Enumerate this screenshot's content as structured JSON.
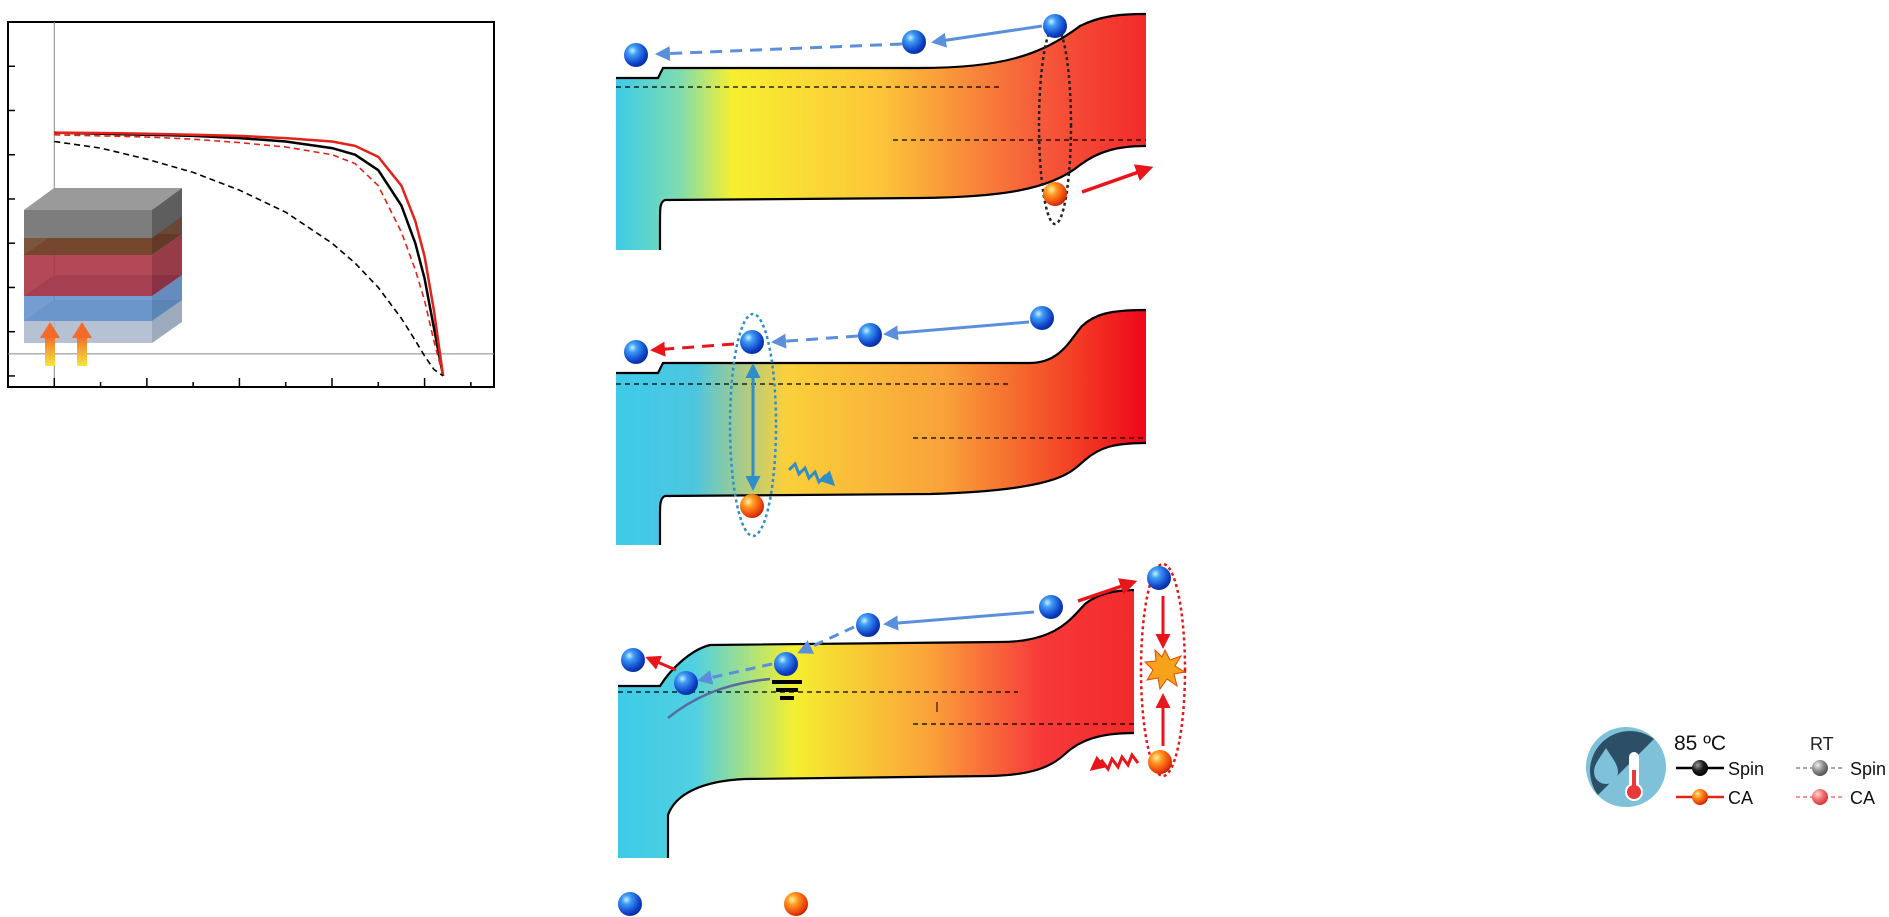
{
  "chart_data": {
    "type": "line",
    "title": "",
    "xlabel": "",
    "ylabel": "",
    "grid": false,
    "series": [
      {
        "style": "solid",
        "color": "#000000",
        "x": [
          0,
          0.1,
          0.2,
          0.3,
          0.4,
          0.5,
          0.6,
          0.65,
          0.7,
          0.75,
          0.78,
          0.8,
          0.82,
          0.84
        ],
        "y": [
          1.0,
          0.995,
          0.99,
          0.985,
          0.975,
          0.96,
          0.93,
          0.9,
          0.83,
          0.67,
          0.5,
          0.34,
          0.12,
          -0.1
        ]
      },
      {
        "style": "solid",
        "color": "#e2231a",
        "x": [
          0,
          0.1,
          0.2,
          0.3,
          0.4,
          0.5,
          0.6,
          0.65,
          0.7,
          0.75,
          0.78,
          0.8,
          0.82,
          0.84
        ],
        "y": [
          1.0,
          0.998,
          0.995,
          0.99,
          0.985,
          0.975,
          0.96,
          0.94,
          0.89,
          0.76,
          0.6,
          0.44,
          0.2,
          -0.1
        ]
      },
      {
        "style": "dashed",
        "color": "#e2231a",
        "x": [
          0,
          0.1,
          0.2,
          0.3,
          0.4,
          0.5,
          0.6,
          0.65,
          0.7,
          0.75,
          0.78,
          0.8,
          0.82,
          0.84
        ],
        "y": [
          0.99,
          0.985,
          0.98,
          0.97,
          0.955,
          0.935,
          0.9,
          0.86,
          0.76,
          0.55,
          0.38,
          0.24,
          0.06,
          -0.1
        ]
      },
      {
        "style": "dashed",
        "color": "#000000",
        "x": [
          0,
          0.1,
          0.2,
          0.3,
          0.4,
          0.5,
          0.6,
          0.65,
          0.7,
          0.75,
          0.78,
          0.8,
          0.82,
          0.84
        ],
        "y": [
          0.96,
          0.93,
          0.88,
          0.82,
          0.74,
          0.64,
          0.5,
          0.41,
          0.3,
          0.16,
          0.06,
          -0.01,
          -0.07,
          -0.1
        ]
      }
    ],
    "xlim": [
      -0.1,
      0.95
    ],
    "ylim": [
      -0.15,
      1.5
    ],
    "x_ticks": [
      -0.1,
      0,
      0.1,
      0.2,
      0.3,
      0.4,
      0.5,
      0.6,
      0.7,
      0.8,
      0.9
    ],
    "y_ticks": [
      -0.1,
      0.1,
      0.3,
      0.5,
      0.7,
      0.9,
      1.1,
      1.3
    ],
    "reference_lines": {
      "x": 0,
      "y": 0
    }
  },
  "colors": {
    "electron": "#1565e0",
    "hole": "#f05a10",
    "etl": "#3ecbe8",
    "perovskite_mid": "#f7ef30",
    "htl": "#f22a2a",
    "arrow_blue": "#5b8fdc",
    "arrow_red": "#e8161b"
  },
  "legend": {
    "group_85": "85 ºC",
    "group_rt": "RT",
    "spin": "Spin",
    "ca": "CA",
    "icon": "humidity-temperature-icon"
  }
}
